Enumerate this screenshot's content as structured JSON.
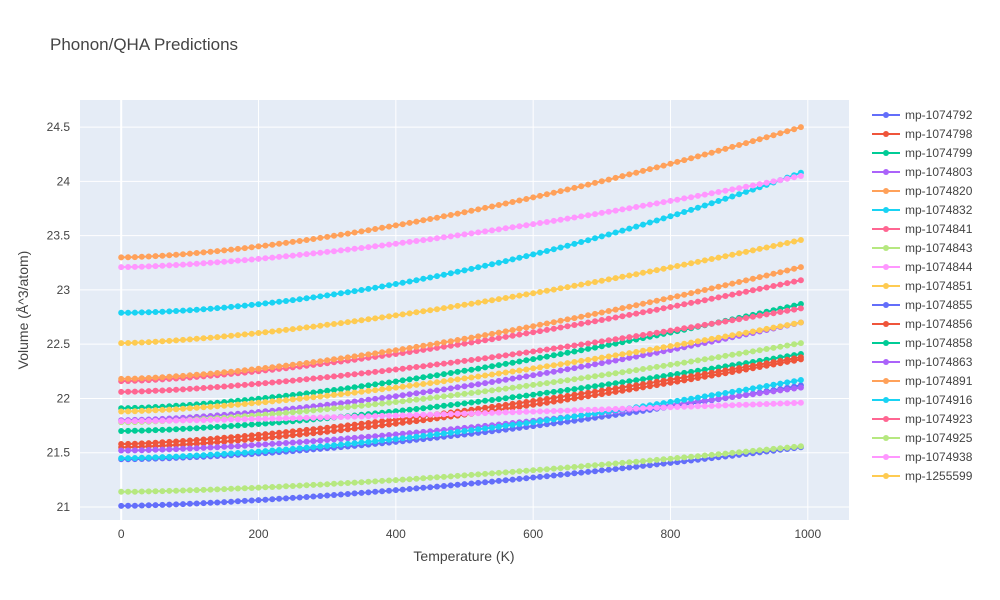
{
  "chart_data": {
    "type": "line",
    "title": "Phonon/QHA Predictions",
    "xlabel": "Temperature (K)",
    "ylabel": "Volume (Å^3/atom)",
    "xlim": [
      -60,
      1060
    ],
    "ylim": [
      20.88,
      24.75
    ],
    "xticks": [
      0,
      200,
      400,
      600,
      800,
      1000
    ],
    "yticks": [
      21,
      21.5,
      22,
      22.5,
      23,
      23.5,
      24,
      24.5
    ],
    "ytick_labels": [
      "21",
      "21.5",
      "22",
      "22.5",
      "23",
      "23.5",
      "24",
      "24.5"
    ],
    "grid": true,
    "legend_position": "right",
    "x_range": [
      0,
      990
    ],
    "x_step": 10,
    "series": [
      {
        "name": "mp-1074792",
        "color": "#636efa",
        "v0": 21.44,
        "v1": 22.12,
        "p": 1.6
      },
      {
        "name": "mp-1074798",
        "color": "#EF553B",
        "v0": 21.55,
        "v1": 22.36,
        "p": 1.45
      },
      {
        "name": "mp-1074799",
        "color": "#00cc96",
        "v0": 21.7,
        "v1": 22.41,
        "p": 1.5
      },
      {
        "name": "mp-1074803",
        "color": "#ab63fa",
        "v0": 21.8,
        "v1": 22.7,
        "p": 1.55
      },
      {
        "name": "mp-1074820",
        "color": "#FFA15A",
        "v0": 23.3,
        "v1": 24.5,
        "p": 1.55
      },
      {
        "name": "mp-1074832",
        "color": "#19d3f3",
        "v0": 22.79,
        "v1": 24.08,
        "p": 1.75
      },
      {
        "name": "mp-1074841",
        "color": "#FF6692",
        "v0": 22.16,
        "v1": 23.09,
        "p": 1.45
      },
      {
        "name": "mp-1074843",
        "color": "#B6E880",
        "v0": 21.78,
        "v1": 22.51,
        "p": 1.5
      },
      {
        "name": "mp-1074844",
        "color": "#FF97FF",
        "v0": 23.21,
        "v1": 24.05,
        "p": 1.5
      },
      {
        "name": "mp-1074851",
        "color": "#FECB52",
        "v0": 22.51,
        "v1": 23.46,
        "p": 1.45
      },
      {
        "name": "mp-1074855",
        "color": "#636efa",
        "v0": 21.01,
        "v1": 21.55,
        "p": 1.45
      },
      {
        "name": "mp-1074856",
        "color": "#EF553B",
        "v0": 21.58,
        "v1": 22.38,
        "p": 1.4
      },
      {
        "name": "mp-1074858",
        "color": "#00cc96",
        "v0": 21.91,
        "v1": 22.87,
        "p": 1.5
      },
      {
        "name": "mp-1074863",
        "color": "#ab63fa",
        "v0": 21.52,
        "v1": 22.1,
        "p": 1.5
      },
      {
        "name": "mp-1074891",
        "color": "#FFA15A",
        "v0": 22.18,
        "v1": 23.21,
        "p": 1.5
      },
      {
        "name": "mp-1074916",
        "color": "#19d3f3",
        "v0": 21.45,
        "v1": 22.17,
        "p": 1.55
      },
      {
        "name": "mp-1074923",
        "color": "#FF6692",
        "v0": 22.06,
        "v1": 22.83,
        "p": 1.45
      },
      {
        "name": "mp-1074925",
        "color": "#B6E880",
        "v0": 21.14,
        "v1": 21.56,
        "p": 1.5
      },
      {
        "name": "mp-1074938",
        "color": "#FF97FF",
        "v0": 21.79,
        "v1": 21.96,
        "p": 1.3
      },
      {
        "name": "mp-1255599",
        "color": "#FECB52",
        "v0": 21.88,
        "v1": 22.7,
        "p": 1.45
      }
    ]
  }
}
